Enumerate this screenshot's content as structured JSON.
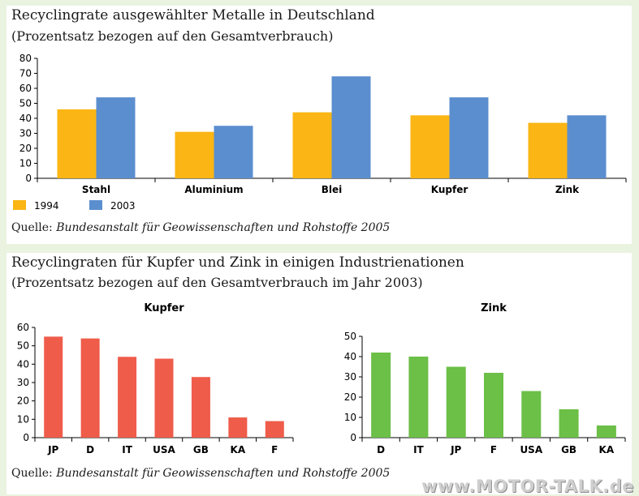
{
  "chart1": {
    "title": "Recyclingrate ausgewählter Metalle in Deutschland",
    "subtitle": "(Prozentsatz bezogen auf den Gesamtverbrauch)",
    "source_label": "Quelle:",
    "source_text": "Bundesanstalt für Geowissenschaften und Rohstoffe 2005"
  },
  "chart2": {
    "title": "Recyclingraten für Kupfer und Zink in einigen Industrienationen",
    "subtitle": "(Prozentsatz bezogen auf den Gesamtverbrauch im Jahr 2003)",
    "source_label": "Quelle:",
    "source_text": "Bundesanstalt für Geowissenschaften und Rohstoffe 2005"
  },
  "watermark": "www.MOTOR-TALK.de",
  "chart_data": [
    {
      "type": "bar",
      "categories": [
        "Stahl",
        "Aluminium",
        "Blei",
        "Kupfer",
        "Zink"
      ],
      "series": [
        {
          "name": "1994",
          "color": "#fbb514",
          "values": [
            46,
            31,
            44,
            42,
            37
          ]
        },
        {
          "name": "2003",
          "color": "#5b8ecf",
          "values": [
            54,
            35,
            68,
            54,
            42
          ]
        }
      ],
      "ylim": [
        0,
        80
      ],
      "yticks": [
        0,
        10,
        20,
        30,
        40,
        50,
        60,
        70,
        80
      ],
      "legend": "bottom-left",
      "grid": false
    },
    {
      "type": "bar",
      "title": "Kupfer",
      "categories": [
        "JP",
        "D",
        "IT",
        "USA",
        "GB",
        "KA",
        "F"
      ],
      "values": [
        55,
        54,
        44,
        43,
        33,
        11,
        9
      ],
      "color": "#ef5c4a",
      "ylim": [
        0,
        60
      ],
      "yticks": [
        0,
        10,
        20,
        30,
        40,
        50,
        60
      ],
      "grid": false
    },
    {
      "type": "bar",
      "title": "Zink",
      "categories": [
        "D",
        "IT",
        "JP",
        "F",
        "USA",
        "GB",
        "KA"
      ],
      "values": [
        42,
        40,
        35,
        32,
        23,
        14,
        6
      ],
      "color": "#6cbf47",
      "ylim": [
        0,
        50
      ],
      "yticks": [
        0,
        10,
        20,
        30,
        40,
        50
      ],
      "grid": false
    }
  ]
}
